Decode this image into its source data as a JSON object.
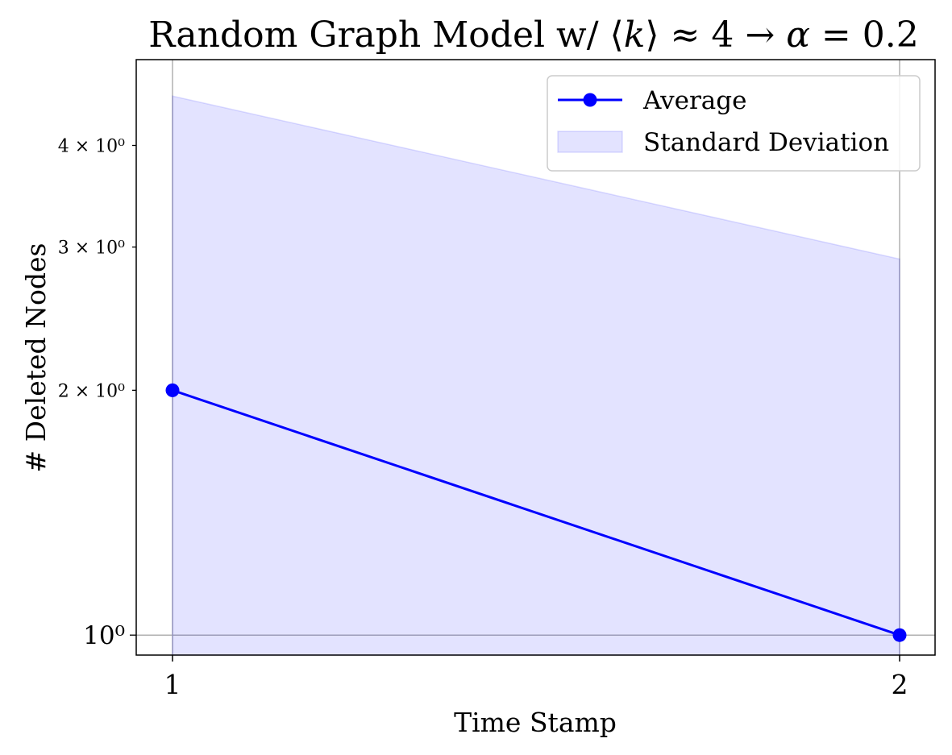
{
  "chart_data": {
    "type": "line",
    "title": "Random Graph Model w/ ⟨k⟩ ≈ 4 → α = 0.2",
    "xlabel": "Time Stamp",
    "ylabel": "# Deleted Nodes",
    "x": [
      1,
      2
    ],
    "x_tick_labels": [
      "1",
      "2"
    ],
    "y_scale": "log",
    "ylim": [
      0.945,
      5.1
    ],
    "y_ticks": [
      {
        "value": 1,
        "label": "10⁰",
        "major": true
      },
      {
        "value": 2,
        "label": "2 × 10⁰",
        "major": false
      },
      {
        "value": 3,
        "label": "3 × 10⁰",
        "major": false
      },
      {
        "value": 4,
        "label": "4 × 10⁰",
        "major": false
      }
    ],
    "grid": true,
    "legend_position": "top-right",
    "series": [
      {
        "name": "Average",
        "type": "line",
        "marker": "circle",
        "color": "#0000ff",
        "values": [
          2.0,
          1.0
        ]
      },
      {
        "name": "Standard Deviation",
        "type": "band",
        "color": "#0000ff",
        "opacity": 0.11,
        "lower": [
          0.9,
          0.9
        ],
        "upper": [
          4.6,
          2.9
        ]
      }
    ]
  }
}
